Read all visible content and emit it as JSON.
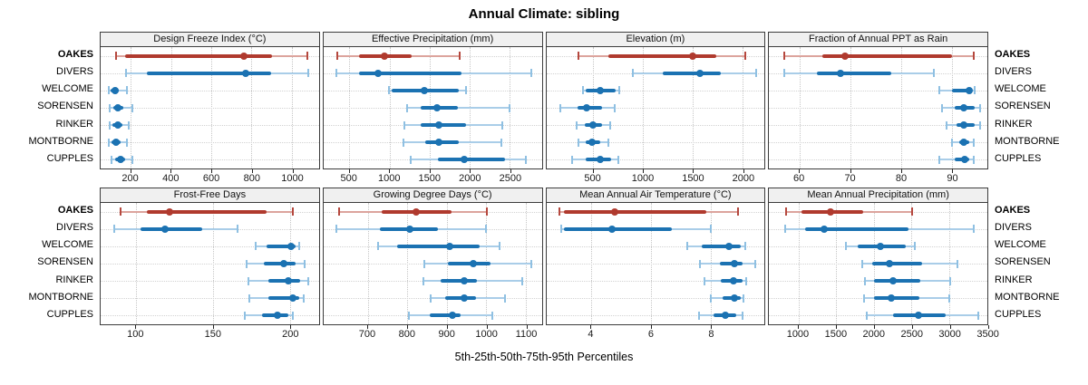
{
  "title": "Annual Climate: sibling",
  "footer_label": "5th-25th-50th-75th-95th Percentiles",
  "colors": {
    "strip_bg": "#f0f0f0",
    "panel_border": "#3c3c3c",
    "grid": "#c6c6c6",
    "series": {
      "highlight": {
        "main": "#b03a2e",
        "whisker": "#dca49d",
        "cap": "#b5483e"
      },
      "normal": {
        "main": "#1b72b2",
        "whisker": "#a9cde8",
        "cap": "#8fc0e2"
      }
    }
  },
  "stations": [
    {
      "label": "OAKES",
      "emphasis": true
    },
    {
      "label": "DIVERS",
      "emphasis": false
    },
    {
      "label": "WELCOME",
      "emphasis": false
    },
    {
      "label": "SORENSEN",
      "emphasis": false
    },
    {
      "label": "RINKER",
      "emphasis": false
    },
    {
      "label": "MONTBORNE",
      "emphasis": false
    },
    {
      "label": "CUPPLES",
      "emphasis": false
    }
  ],
  "chart_data": {
    "type": "scatter",
    "variant": "percentile-interval-dotplot",
    "percentiles": [
      5,
      25,
      50,
      75,
      95
    ],
    "legend_note": "values per station are [5th, 25th, 50th, 75th, 95th] percentiles",
    "panels": [
      {
        "title": "Design Freeze Index (°C)",
        "xlim": [
          50,
          1135
        ],
        "ticks": [
          200,
          400,
          600,
          800,
          1000
        ],
        "series": [
          {
            "name": "OAKES",
            "values": [
              125,
              170,
              763,
              900,
              1078
            ]
          },
          {
            "name": "DIVERS",
            "values": [
              178,
              278,
              770,
              897,
              1082
            ]
          },
          {
            "name": "WELCOME",
            "values": [
              90,
              100,
              122,
              140,
              182
            ]
          },
          {
            "name": "SORENSEN",
            "values": [
              95,
              112,
              137,
              162,
              208
            ]
          },
          {
            "name": "RINKER",
            "values": [
              95,
              110,
              135,
              158,
              188
            ]
          },
          {
            "name": "MONTBORNE",
            "values": [
              92,
              105,
              128,
              150,
              182
            ]
          },
          {
            "name": "CUPPLES",
            "values": [
              105,
              122,
              148,
              172,
              208
            ]
          }
        ]
      },
      {
        "title": "Effective Precipitation (mm)",
        "xlim": [
          175,
          2900
        ],
        "ticks": [
          500,
          1000,
          1500,
          2000,
          2500
        ],
        "series": [
          {
            "name": "OAKES",
            "values": [
              350,
              620,
              940,
              1280,
              1880
            ]
          },
          {
            "name": "DIVERS",
            "values": [
              340,
              620,
              855,
              1900,
              2770
            ]
          },
          {
            "name": "WELCOME",
            "values": [
              990,
              1030,
              1435,
              1860,
              1960
            ]
          },
          {
            "name": "SORENSEN",
            "values": [
              1215,
              1390,
              1590,
              1850,
              2500
            ]
          },
          {
            "name": "RINKER",
            "values": [
              1190,
              1390,
              1615,
              1960,
              2405
            ]
          },
          {
            "name": "MONTBORNE",
            "values": [
              1175,
              1440,
              1615,
              1870,
              2395
            ]
          },
          {
            "name": "CUPPLES",
            "values": [
              1270,
              1600,
              1935,
              2440,
              2700
            ]
          }
        ]
      },
      {
        "title": "Elevation (m)",
        "xlim": [
          30,
          2220
        ],
        "ticks": [
          500,
          1000,
          1500,
          2000
        ],
        "series": [
          {
            "name": "OAKES",
            "values": [
              350,
              650,
              1500,
              1740,
              2025
            ]
          },
          {
            "name": "DIVERS",
            "values": [
              900,
              1195,
              1570,
              1785,
              2135
            ]
          },
          {
            "name": "WELCOME",
            "values": [
              400,
              425,
              570,
              725,
              765
            ]
          },
          {
            "name": "SORENSEN",
            "values": [
              175,
              345,
              435,
              585,
              720
            ]
          },
          {
            "name": "RINKER",
            "values": [
              335,
              420,
              500,
              590,
              675
            ]
          },
          {
            "name": "MONTBORNE",
            "values": [
              350,
              430,
              490,
              575,
              655
            ]
          },
          {
            "name": "CUPPLES",
            "values": [
              290,
              425,
              570,
              680,
              755
            ]
          }
        ]
      },
      {
        "title": "Fraction of Annual PPT as Rain",
        "xlim": [
          54,
          97
        ],
        "ticks": [
          60,
          70,
          80,
          90
        ],
        "series": [
          {
            "name": "OAKES",
            "values": [
              57,
              64.5,
              69,
              90,
              94.3
            ]
          },
          {
            "name": "DIVERS",
            "values": [
              57,
              63.5,
              68,
              78,
              86.5
            ]
          },
          {
            "name": "WELCOME",
            "values": [
              87.5,
              90,
              93.5,
              94,
              94.5
            ]
          },
          {
            "name": "SORENSEN",
            "values": [
              88,
              90.5,
              92.3,
              94.5,
              95.5
            ]
          },
          {
            "name": "RINKER",
            "values": [
              89,
              91,
              92.3,
              94.5,
              95.5
            ]
          },
          {
            "name": "MONTBORNE",
            "values": [
              90,
              91.5,
              92.4,
              93.5,
              94.3
            ]
          },
          {
            "name": "CUPPLES",
            "values": [
              87.5,
              90.5,
              92.5,
              93.5,
              94.3
            ]
          }
        ]
      },
      {
        "title": "Frost-Free Days",
        "xlim": [
          77,
          219
        ],
        "ticks": [
          100,
          150,
          200
        ],
        "series": [
          {
            "name": "OAKES",
            "values": [
              90,
              107,
              122,
              185,
              202
            ]
          },
          {
            "name": "DIVERS",
            "values": [
              86,
              103,
              119,
              143,
              166
            ]
          },
          {
            "name": "WELCOME",
            "values": [
              178,
              185,
              201,
              204,
              206
            ]
          },
          {
            "name": "SORENSEN",
            "values": [
              172,
              183,
              196,
              204,
              210
            ]
          },
          {
            "name": "RINKER",
            "values": [
              173,
              186,
              199,
              207,
              212
            ]
          },
          {
            "name": "MONTBORNE",
            "values": [
              174,
              186,
              202,
              206,
              209
            ]
          },
          {
            "name": "CUPPLES",
            "values": [
              171,
              182,
              192,
              199,
              202
            ]
          }
        ]
      },
      {
        "title": "Growing Degree Days (°C)",
        "xlim": [
          588,
          1141
        ],
        "ticks": [
          700,
          800,
          900,
          1000,
          1100
        ],
        "series": [
          {
            "name": "OAKES",
            "values": [
              627,
              736,
              824,
              912,
              1003
            ]
          },
          {
            "name": "DIVERS",
            "values": [
              621,
              732,
              807,
              879,
              999
            ]
          },
          {
            "name": "WELCOME",
            "values": [
              726,
              775,
              908,
              984,
              1034
            ]
          },
          {
            "name": "SORENSEN",
            "values": [
              843,
              904,
              967,
              1011,
              1114
            ]
          },
          {
            "name": "RINKER",
            "values": [
              841,
              885,
              944,
              977,
              1091
            ]
          },
          {
            "name": "MONTBORNE",
            "values": [
              860,
              896,
              944,
              974,
              1047
            ]
          },
          {
            "name": "CUPPLES",
            "values": [
              805,
              858,
              915,
              935,
              1015
            ]
          }
        ]
      },
      {
        "title": "Mean Annual Air Temperature (°C)",
        "xlim": [
          2.5,
          9.8
        ],
        "ticks": [
          4,
          6,
          8
        ],
        "series": [
          {
            "name": "OAKES",
            "values": [
              2.95,
              3.1,
              4.8,
              7.85,
              8.9
            ]
          },
          {
            "name": "DIVERS",
            "values": [
              3.0,
              3.1,
              4.7,
              6.7,
              8.0
            ]
          },
          {
            "name": "WELCOME",
            "values": [
              7.2,
              7.7,
              8.6,
              9.0,
              9.15
            ]
          },
          {
            "name": "SORENSEN",
            "values": [
              7.65,
              8.3,
              8.8,
              9.05,
              9.5
            ]
          },
          {
            "name": "RINKER",
            "values": [
              7.8,
              8.35,
              8.75,
              9.05,
              9.2
            ]
          },
          {
            "name": "MONTBORNE",
            "values": [
              8.0,
              8.4,
              8.78,
              9.0,
              9.1
            ]
          },
          {
            "name": "CUPPLES",
            "values": [
              7.6,
              8.1,
              8.5,
              8.85,
              9.05
            ]
          }
        ]
      },
      {
        "title": "Mean Annual Precipitation (mm)",
        "xlim": [
          610,
          3505
        ],
        "ticks": [
          1000,
          1500,
          2000,
          2500,
          3000,
          3500
        ],
        "series": [
          {
            "name": "OAKES",
            "values": [
              830,
              1040,
              1430,
              1860,
              2510
            ]
          },
          {
            "name": "DIVERS",
            "values": [
              820,
              1090,
              1340,
              2460,
              3320
            ]
          },
          {
            "name": "WELCOME",
            "values": [
              1630,
              1790,
              2090,
              2420,
              2540
            ]
          },
          {
            "name": "SORENSEN",
            "values": [
              1840,
              1980,
              2210,
              2640,
              3110
            ]
          },
          {
            "name": "RINKER",
            "values": [
              1880,
              2000,
              2250,
              2620,
              3010
            ]
          },
          {
            "name": "MONTBORNE",
            "values": [
              1875,
              2000,
              2230,
              2600,
              3000
            ]
          },
          {
            "name": "CUPPLES",
            "values": [
              1910,
              2260,
              2590,
              2950,
              3390
            ]
          }
        ]
      }
    ]
  }
}
